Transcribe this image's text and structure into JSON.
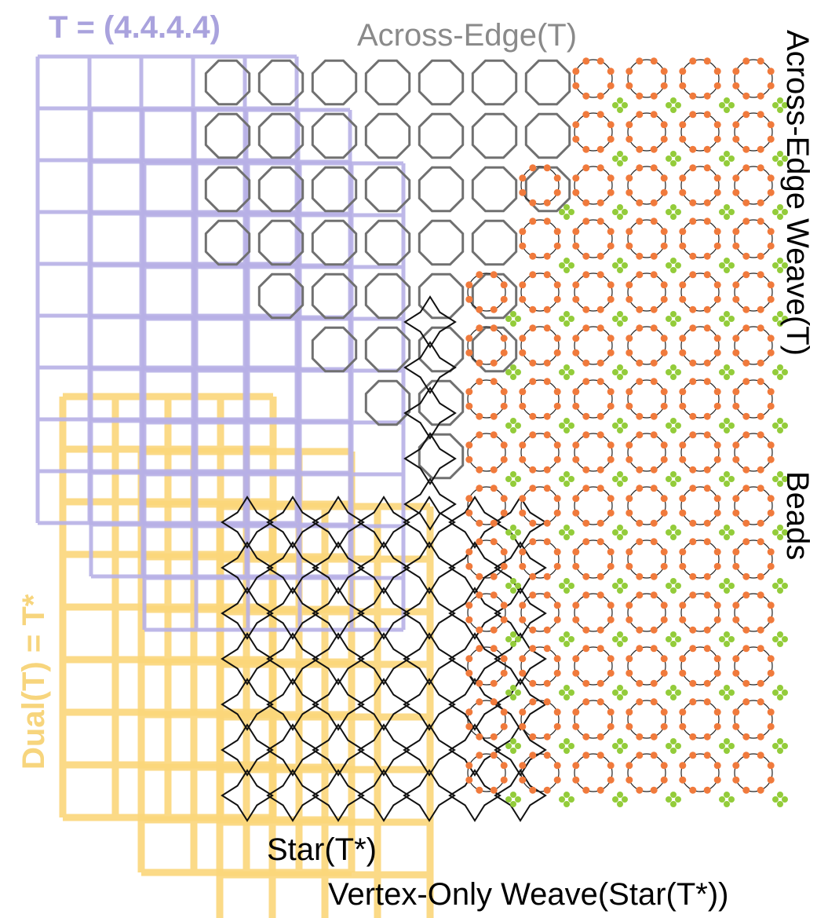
{
  "labels": {
    "tiling": "T = (4.4.4.4)",
    "across_edge": "Across-Edge(T)",
    "across_edge_weave": "Across-Edge Weave(T)",
    "beads": "Beads",
    "dual": "Dual(T) = T*",
    "star": "Star(T*)",
    "vertex_only_weave": "Vertex-Only Weave(Star(T*))"
  },
  "colors": {
    "tiling": "#b7b0e6",
    "dual": "#fbd67a",
    "across_edge": "#707070",
    "star": "#111111",
    "weave_line": "#222222",
    "bead_orange": "#f07a3c",
    "bead_green": "#93cc3a",
    "label_tiling": "#a9a2dd",
    "label_across_edge": "#8a8a8a",
    "label_dual": "#f7d57d",
    "label_black": "#000000"
  }
}
